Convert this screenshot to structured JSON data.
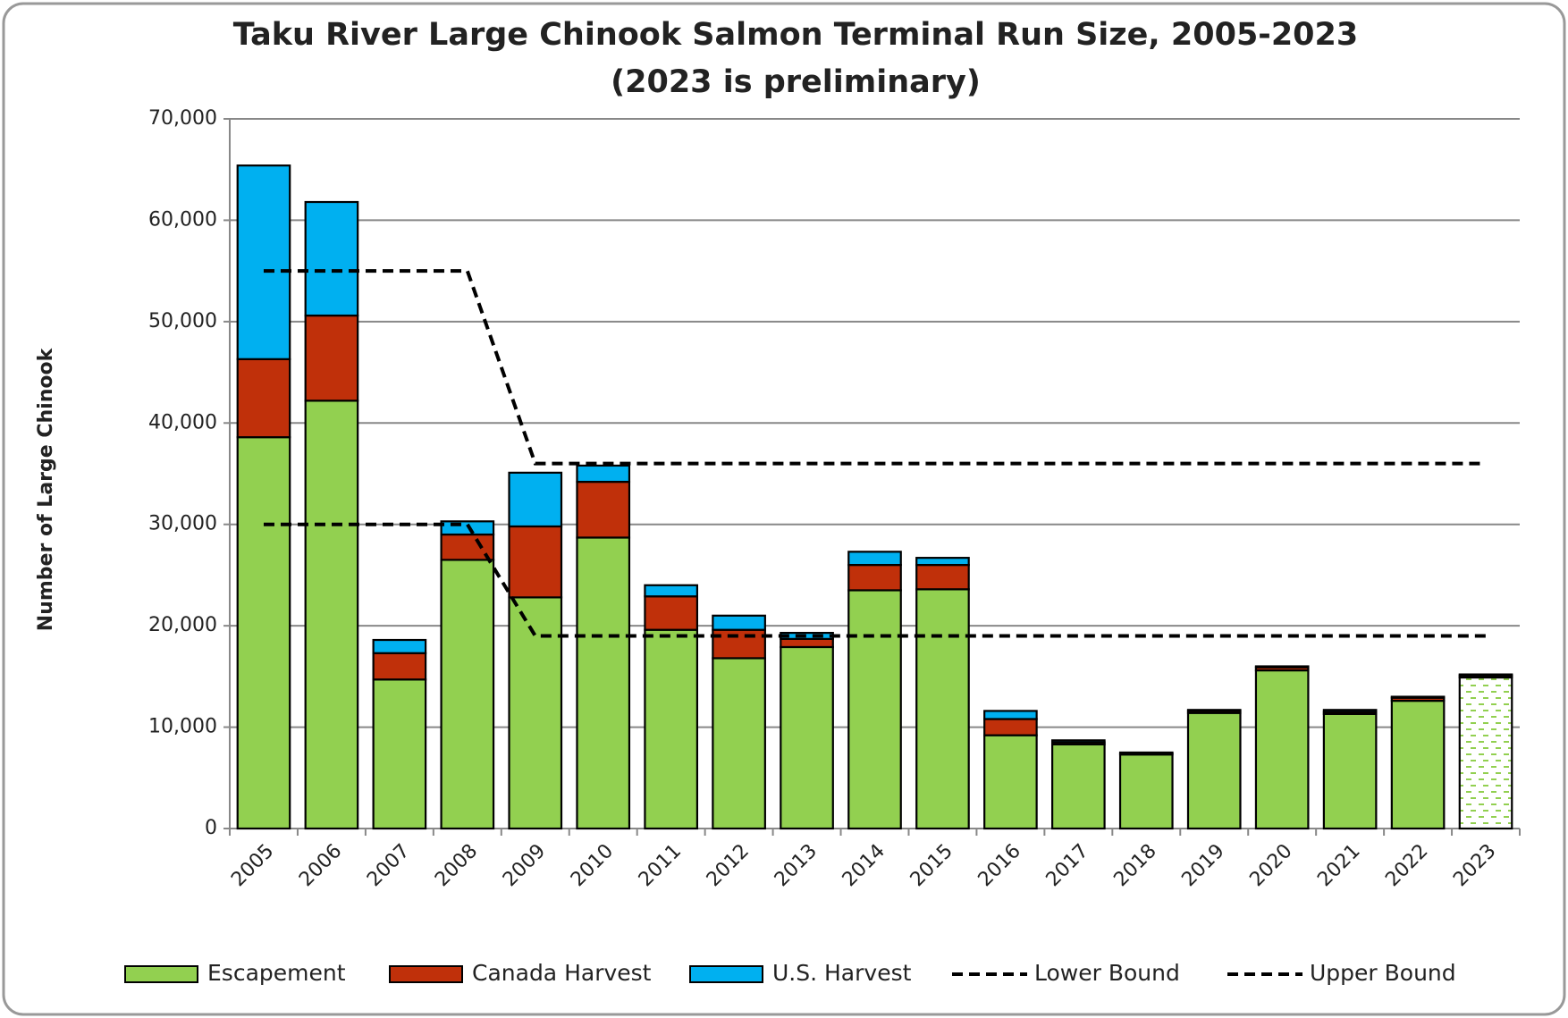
{
  "chart_data": {
    "type": "bar",
    "stacked": true,
    "title": "Taku River Large Chinook Salmon Terminal Run Size, 2005-2023",
    "subtitle": "(2023 is preliminary)",
    "y_label": "Number of Large Chinook",
    "categories": [
      "2005",
      "2006",
      "2007",
      "2008",
      "2009",
      "2010",
      "2011",
      "2012",
      "2013",
      "2014",
      "2015",
      "2016",
      "2017",
      "2018",
      "2019",
      "2020",
      "2021",
      "2022",
      "2023"
    ],
    "series": [
      {
        "name": "Escapement",
        "type": "bar",
        "color": "#92d050",
        "values": [
          38600,
          42200,
          14700,
          26500,
          22800,
          28700,
          19600,
          16800,
          17900,
          23500,
          23600,
          9200,
          8300,
          7300,
          11400,
          15600,
          11300,
          12600,
          14900
        ]
      },
      {
        "name": "Canada Harvest",
        "type": "bar",
        "color": "#c0300a",
        "values": [
          7700,
          8400,
          2600,
          2500,
          7000,
          5500,
          3300,
          2800,
          800,
          2500,
          2400,
          1600,
          200,
          100,
          200,
          300,
          200,
          300,
          200
        ]
      },
      {
        "name": "U.S. Harvest",
        "type": "bar",
        "color": "#00b0f0",
        "values": [
          19100,
          11200,
          1300,
          1300,
          5300,
          1600,
          1100,
          1400,
          600,
          1300,
          700,
          800,
          200,
          100,
          100,
          100,
          200,
          100,
          100
        ]
      },
      {
        "name": "Lower Bound",
        "type": "line",
        "color": "#000000",
        "values": [
          30000,
          30000,
          30000,
          30000,
          19000,
          19000,
          19000,
          19000,
          19000,
          19000,
          19000,
          19000,
          19000,
          19000,
          19000,
          19000,
          19000,
          19000,
          19000
        ]
      },
      {
        "name": "Upper Bound",
        "type": "line",
        "color": "#000000",
        "values": [
          55000,
          55000,
          55000,
          55000,
          36000,
          36000,
          36000,
          36000,
          36000,
          36000,
          36000,
          36000,
          36000,
          36000,
          36000,
          36000,
          36000,
          36000,
          36000
        ]
      }
    ],
    "ylim": [
      0,
      70000
    ],
    "yticks": [
      0,
      {
        "value": 10000,
        "label": "10,000"
      },
      {
        "value": 20000,
        "label": "20,000"
      },
      {
        "value": 30000,
        "label": "30,000"
      },
      {
        "value": 40000,
        "label": "40,000"
      },
      {
        "value": 50000,
        "label": "50,000"
      },
      {
        "value": 60000,
        "label": "60,000"
      },
      {
        "value": 70000,
        "label": "70,000"
      }
    ],
    "grid": true,
    "legend": "bottom"
  }
}
